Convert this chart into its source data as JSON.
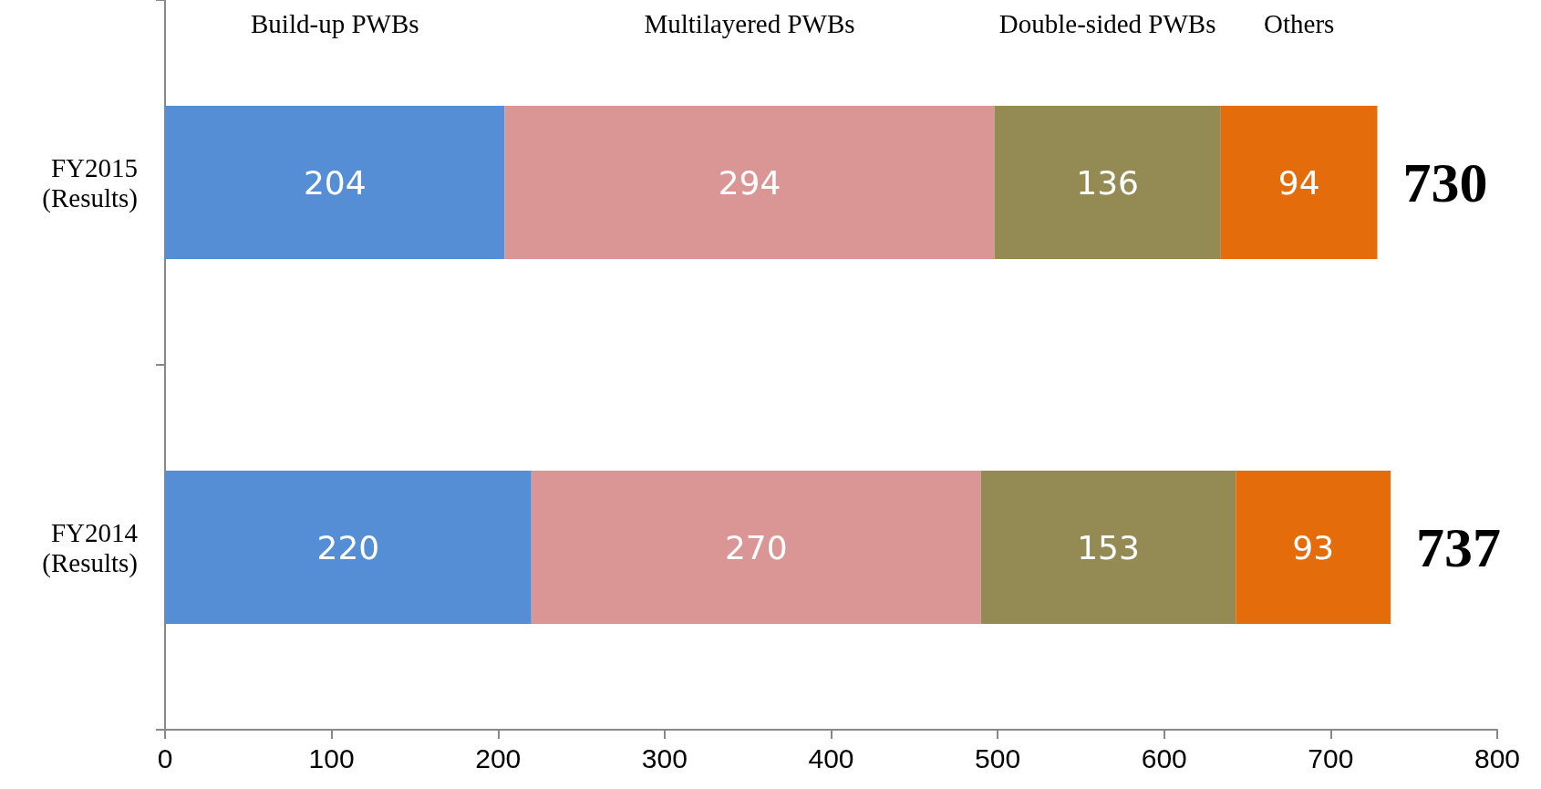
{
  "chart_data": {
    "type": "bar",
    "orientation": "horizontal",
    "stacked": true,
    "data_labels": true,
    "grid": false,
    "categories": [
      "FY2015\n(Results)",
      "FY2014\n(Results)"
    ],
    "series": [
      {
        "name": "Build-up PWBs",
        "color": "#558ed5",
        "values": [
          204,
          220
        ]
      },
      {
        "name": "Multilayered PWBs",
        "color": "#d99694",
        "values": [
          294,
          270
        ]
      },
      {
        "name": "Double-sided PWBs",
        "color": "#948a54",
        "values": [
          136,
          153
        ]
      },
      {
        "name": "Others",
        "color": "#e46c0a",
        "values": [
          94,
          93
        ]
      }
    ],
    "totals": [
      "730",
      "737"
    ],
    "xlim": [
      0,
      800
    ],
    "xticks": [
      0,
      100,
      200,
      300,
      400,
      500,
      600,
      700,
      800
    ]
  }
}
